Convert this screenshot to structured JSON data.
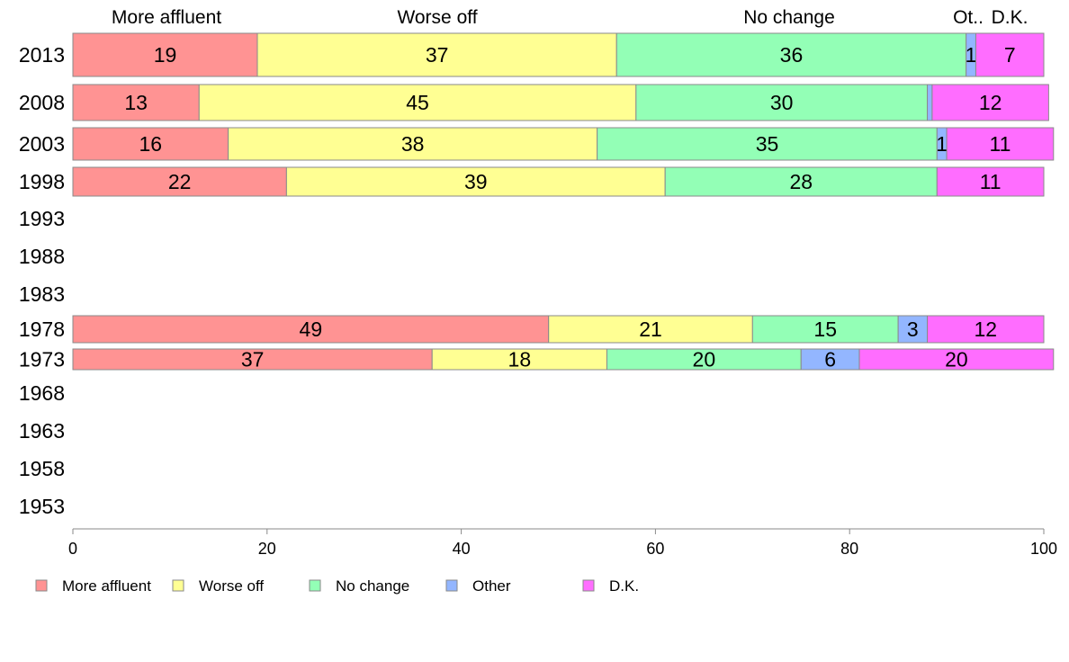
{
  "chart_data": {
    "type": "bar",
    "orientation": "horizontal",
    "stacked": true,
    "years": [
      "2013",
      "2008",
      "2003",
      "1998",
      "1993",
      "1988",
      "1983",
      "1978",
      "1973",
      "1968",
      "1963",
      "1958",
      "1953"
    ],
    "series": [
      {
        "name": "More affluent",
        "color": "#ff9393",
        "values": [
          19,
          13,
          16,
          22,
          null,
          null,
          null,
          49,
          37,
          null,
          null,
          null,
          null
        ]
      },
      {
        "name": "Worse off",
        "color": "#ffff93",
        "values": [
          37,
          45,
          38,
          39,
          null,
          null,
          null,
          21,
          18,
          null,
          null,
          null,
          null
        ]
      },
      {
        "name": "No change",
        "color": "#93ffb6",
        "values": [
          36,
          30,
          35,
          28,
          null,
          null,
          null,
          15,
          20,
          null,
          null,
          null,
          null
        ]
      },
      {
        "name": "Other",
        "color": "#93b6ff",
        "values": [
          1,
          0.5,
          1,
          0,
          null,
          null,
          null,
          3,
          6,
          null,
          null,
          null,
          null
        ]
      },
      {
        "name": "D.K.",
        "color": "#ff6dff",
        "values": [
          7,
          12,
          11,
          11,
          null,
          null,
          null,
          12,
          20,
          null,
          null,
          null,
          null
        ]
      }
    ],
    "top_labels": [
      "More affluent",
      "Worse off",
      "No change",
      "Ot..",
      "D.K."
    ],
    "xlim": [
      0,
      100
    ],
    "xticks": [
      "0",
      "20",
      "40",
      "60",
      "80",
      "100"
    ],
    "legend": {
      "position": "bottom-left",
      "entries": [
        "More affluent",
        "Worse off",
        "No change",
        "Other",
        "D.K."
      ]
    }
  }
}
